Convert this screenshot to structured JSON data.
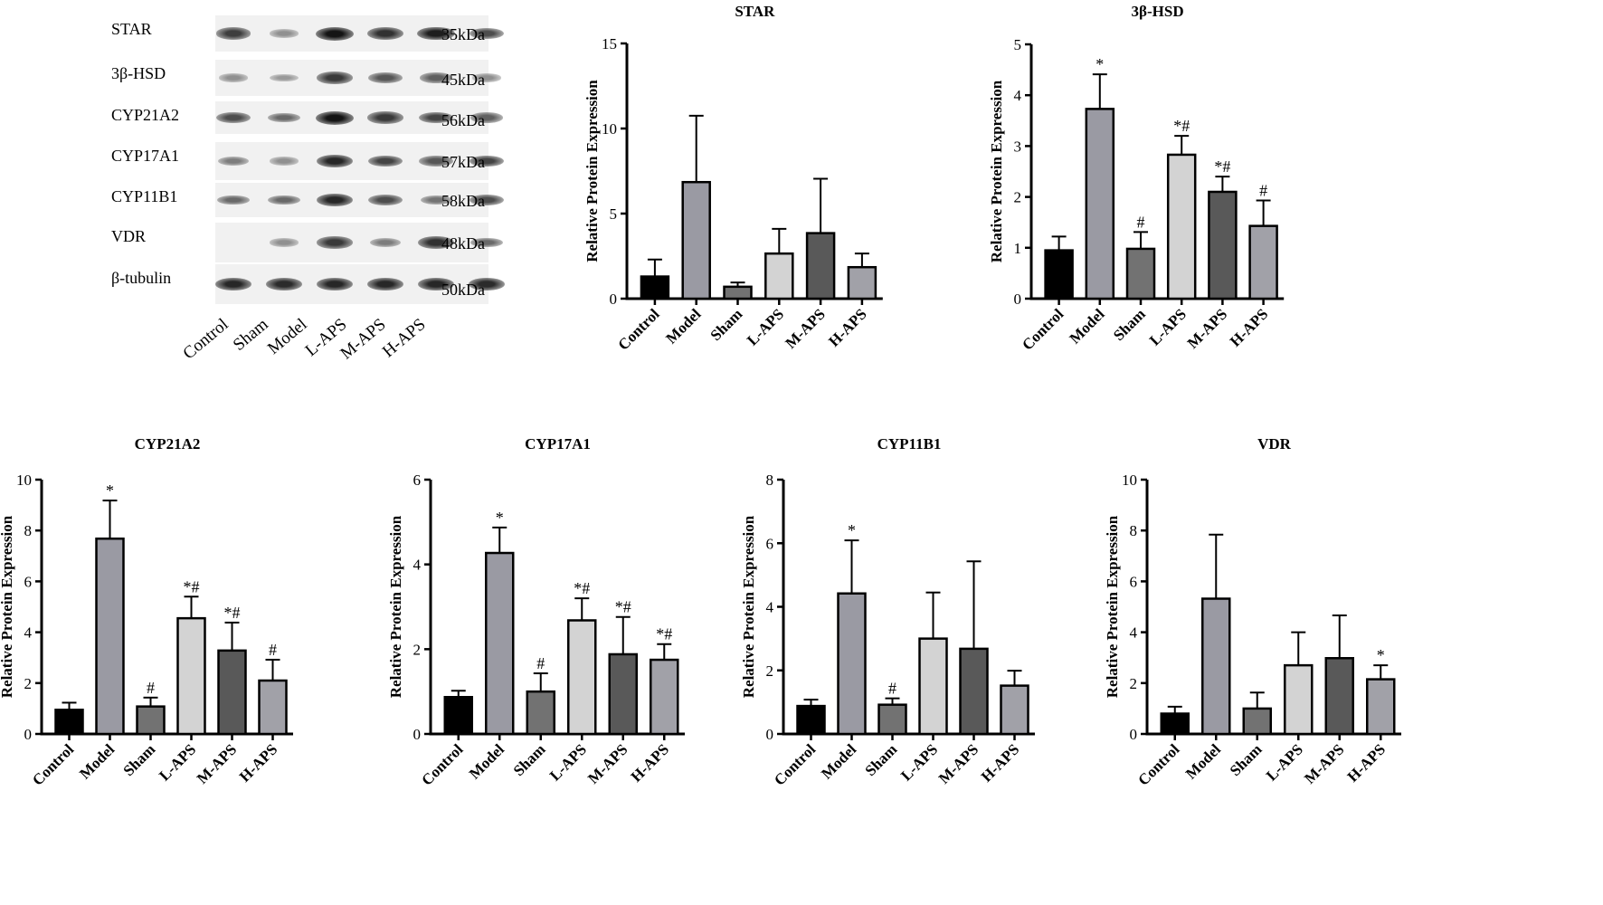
{
  "blot": {
    "lanes": [
      "Control",
      "Sham",
      "Model",
      "L-APS",
      "M-APS",
      "H-APS"
    ],
    "rows": [
      {
        "protein": "STAR",
        "kda": "35kDa",
        "intensity": [
          0.78,
          0.35,
          1.0,
          0.85,
          0.95,
          0.7
        ]
      },
      {
        "protein": "3β-HSD",
        "kda": "45kDa",
        "intensity": [
          0.35,
          0.3,
          0.8,
          0.65,
          0.6,
          0.35
        ]
      },
      {
        "protein": "CYP21A2",
        "kda": "56kDa",
        "intensity": [
          0.7,
          0.55,
          1.0,
          0.8,
          0.75,
          0.6
        ]
      },
      {
        "protein": "CYP17A1",
        "kda": "57kDa",
        "intensity": [
          0.45,
          0.35,
          0.9,
          0.75,
          0.65,
          0.75
        ]
      },
      {
        "protein": "CYP11B1",
        "kda": "58kDa",
        "intensity": [
          0.55,
          0.55,
          0.9,
          0.7,
          0.5,
          0.7
        ]
      },
      {
        "protein": "VDR",
        "kda": "48kDa",
        "intensity": [
          0.0,
          0.35,
          0.8,
          0.45,
          0.85,
          0.55
        ]
      },
      {
        "protein": "β-tubulin",
        "kda": "50kDa",
        "intensity": [
          0.9,
          0.88,
          0.9,
          0.9,
          0.9,
          0.88
        ]
      }
    ]
  },
  "colors": {
    "Control": "#000000",
    "Model": "#9a9aa3",
    "Sham": "#727272",
    "L-APS": "#d3d3d3",
    "M-APS": "#595959",
    "H-APS": "#a1a1a8"
  },
  "chart_data": [
    {
      "type": "bar",
      "title": "STAR",
      "ylabel": "Relative Protein Expression",
      "ylim": [
        0,
        15
      ],
      "yticks": [
        0,
        5,
        10,
        15
      ],
      "categories": [
        "Control",
        "Model",
        "Sham",
        "L-APS",
        "M-APS",
        "H-APS"
      ],
      "values": [
        1.3,
        6.85,
        0.7,
        2.65,
        3.85,
        1.85
      ],
      "errors": [
        1.0,
        3.9,
        0.25,
        1.45,
        3.2,
        0.8
      ],
      "annotations": [
        "",
        "",
        "",
        "",
        "",
        ""
      ]
    },
    {
      "type": "bar",
      "title": "3β-HSD",
      "ylabel": "Relative Protein Expression",
      "ylim": [
        0,
        5
      ],
      "yticks": [
        0,
        1,
        2,
        3,
        4,
        5
      ],
      "categories": [
        "Control",
        "Model",
        "Sham",
        "L-APS",
        "M-APS",
        "H-APS"
      ],
      "values": [
        0.95,
        3.73,
        0.98,
        2.83,
        2.1,
        1.43
      ],
      "errors": [
        0.27,
        0.68,
        0.33,
        0.37,
        0.3,
        0.5
      ],
      "annotations": [
        "",
        "*",
        "#",
        "*#",
        "*#",
        "#"
      ]
    },
    {
      "type": "bar",
      "title": "CYP21A2",
      "ylabel": "Relative Protein Expression",
      "ylim": [
        0,
        10
      ],
      "yticks": [
        0,
        2,
        4,
        6,
        8,
        10
      ],
      "categories": [
        "Control",
        "Model",
        "Sham",
        "L-APS",
        "M-APS",
        "H-APS"
      ],
      "values": [
        0.95,
        7.68,
        1.08,
        4.55,
        3.28,
        2.1
      ],
      "errors": [
        0.28,
        1.5,
        0.35,
        0.85,
        1.1,
        0.82
      ],
      "annotations": [
        "",
        "*",
        "#",
        "*#",
        "*#",
        "#"
      ]
    },
    {
      "type": "bar",
      "title": "CYP17A1",
      "ylabel": "Relative Protein Expression",
      "ylim": [
        0,
        6
      ],
      "yticks": [
        0,
        2,
        4,
        6
      ],
      "categories": [
        "Control",
        "Model",
        "Sham",
        "L-APS",
        "M-APS",
        "H-APS"
      ],
      "values": [
        0.87,
        4.27,
        1.0,
        2.68,
        1.88,
        1.75
      ],
      "errors": [
        0.15,
        0.6,
        0.43,
        0.52,
        0.88,
        0.37
      ],
      "annotations": [
        "",
        "*",
        "#",
        "*#",
        "*#",
        "*#"
      ]
    },
    {
      "type": "bar",
      "title": "CYP11B1",
      "ylabel": "Relative Protein Expression",
      "ylim": [
        0,
        8
      ],
      "yticks": [
        0,
        2,
        4,
        6,
        8
      ],
      "categories": [
        "Control",
        "Model",
        "Sham",
        "L-APS",
        "M-APS",
        "H-APS"
      ],
      "values": [
        0.88,
        4.42,
        0.92,
        3.0,
        2.68,
        1.52
      ],
      "errors": [
        0.2,
        1.67,
        0.2,
        1.45,
        2.75,
        0.47
      ],
      "annotations": [
        "",
        "*",
        "#",
        "",
        "",
        ""
      ]
    },
    {
      "type": "bar",
      "title": "VDR",
      "ylabel": "Relative Protein Expression",
      "ylim": [
        0,
        10
      ],
      "yticks": [
        0,
        2,
        4,
        6,
        8,
        10
      ],
      "categories": [
        "Control",
        "Model",
        "Sham",
        "L-APS",
        "M-APS",
        "H-APS"
      ],
      "values": [
        0.8,
        5.32,
        1.0,
        2.7,
        2.98,
        2.15
      ],
      "errors": [
        0.27,
        2.52,
        0.63,
        1.3,
        1.68,
        0.55
      ],
      "annotations": [
        "",
        "",
        "",
        "",
        "",
        "*"
      ]
    }
  ]
}
